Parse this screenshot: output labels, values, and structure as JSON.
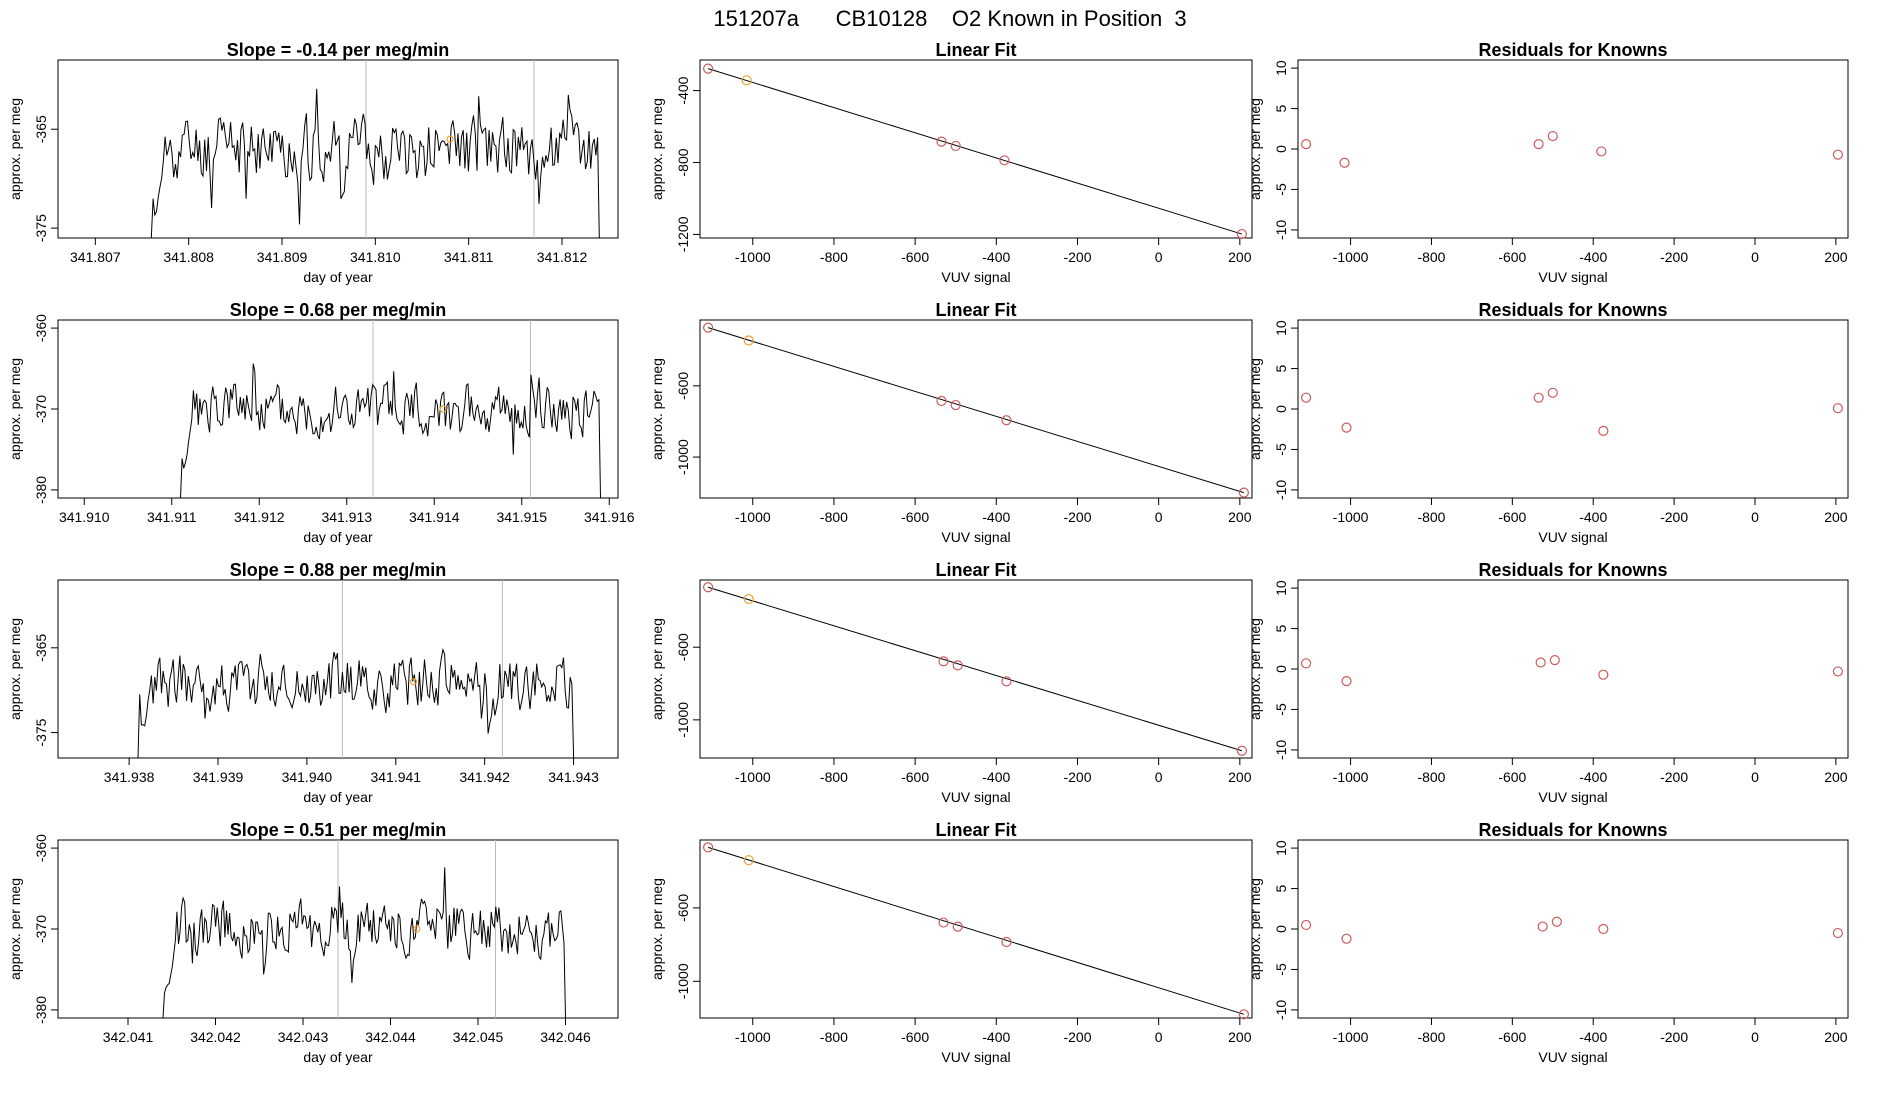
{
  "suptitle": "151207a      CB10128    O2 Known in Position  3",
  "colors": {
    "trace": "#000000",
    "marker": "#d2691e",
    "orange": "#f0a030",
    "vline": "#bbbbbb",
    "fit_point": "#cd5c5c"
  },
  "chart_data": [
    {
      "type": "line",
      "panel": "timeseries",
      "title": "Slope =  -0.14  per meg/min",
      "xlabel": "day of year",
      "ylabel": "approx. per meg",
      "xlim": [
        341.8066,
        341.8126
      ],
      "ylim": [
        -376,
        -358
      ],
      "xticks": [
        "341.807",
        "341.808",
        "341.809",
        "341.810",
        "341.811",
        "341.812"
      ],
      "yticks": [
        -365,
        -375
      ],
      "vlines": [
        341.8099,
        341.8117
      ],
      "trace_start": [
        341.8076,
        -376
      ],
      "trace_end": [
        341.8124,
        -376
      ],
      "trace_mean": -367,
      "trace_amp": 4.5,
      "trace_seed": 11,
      "marker": [
        341.8108,
        -366
      ]
    },
    {
      "type": "scatter",
      "panel": "fit",
      "title": "Linear Fit",
      "xlabel": "VUV signal",
      "ylabel": "approx. per meg",
      "xlim": [
        -1130,
        230
      ],
      "ylim": [
        -1220,
        -230
      ],
      "xticks": [
        -1000,
        -800,
        -600,
        -400,
        -200,
        0,
        200
      ],
      "yticks": [
        -400,
        -800,
        -1200
      ],
      "x": [
        -1110,
        -1015,
        -535,
        -500,
        -380,
        205
      ],
      "y": [
        -278,
        -343,
        -684,
        -708,
        -788,
        -1198
      ],
      "highlight_index": 1
    },
    {
      "type": "scatter",
      "panel": "residuals",
      "title": "Residuals for Knowns",
      "xlabel": "VUV signal",
      "ylabel": "approx. per meg",
      "xlim": [
        -1130,
        230
      ],
      "ylim": [
        -11,
        11
      ],
      "xticks": [
        -1000,
        -800,
        -600,
        -400,
        -200,
        0,
        200
      ],
      "yticks": [
        10,
        5,
        0,
        -5,
        -10
      ],
      "x": [
        -1110,
        -1015,
        -535,
        -500,
        -380,
        205
      ],
      "y": [
        0.6,
        -1.7,
        0.6,
        1.6,
        -0.3,
        -0.7
      ]
    },
    {
      "type": "line",
      "panel": "timeseries",
      "title": "Slope =  0.68  per meg/min",
      "xlabel": "day of year",
      "ylabel": "approx. per meg",
      "xlim": [
        341.9097,
        341.9161
      ],
      "ylim": [
        -381,
        -359
      ],
      "xticks": [
        "341.910",
        "341.911",
        "341.912",
        "341.913",
        "341.914",
        "341.915",
        "341.916"
      ],
      "yticks": [
        -360,
        -370,
        -380
      ],
      "vlines": [
        341.9133,
        341.9151
      ],
      "trace_start": [
        341.9111,
        -381
      ],
      "trace_end": [
        341.9159,
        -381
      ],
      "trace_mean": -370,
      "trace_amp": 4.5,
      "trace_seed": 23,
      "marker": [
        341.9141,
        -370
      ]
    },
    {
      "type": "scatter",
      "panel": "fit",
      "title": "Linear Fit",
      "xlabel": "VUV signal",
      "ylabel": "approx. per meg",
      "xlim": [
        -1130,
        230
      ],
      "ylim": [
        -1230,
        -230
      ],
      "xticks": [
        -1000,
        -800,
        -600,
        -400,
        -200,
        0,
        200
      ],
      "yticks": [
        -600,
        -1000
      ],
      "x": [
        -1110,
        -1010,
        -535,
        -500,
        -375,
        210
      ],
      "y": [
        -273,
        -345,
        -685,
        -708,
        -793,
        -1200
      ],
      "highlight_index": 1
    },
    {
      "type": "scatter",
      "panel": "residuals",
      "title": "Residuals for Knowns",
      "xlabel": "VUV signal",
      "ylabel": "approx. per meg",
      "xlim": [
        -1130,
        230
      ],
      "ylim": [
        -11,
        11
      ],
      "xticks": [
        -1000,
        -800,
        -600,
        -400,
        -200,
        0,
        200
      ],
      "yticks": [
        10,
        5,
        0,
        -5,
        -10
      ],
      "x": [
        -1110,
        -1010,
        -535,
        -500,
        -375,
        205
      ],
      "y": [
        1.4,
        -2.3,
        1.4,
        2.0,
        -2.7,
        0.1
      ]
    },
    {
      "type": "line",
      "panel": "timeseries",
      "title": "Slope =  0.88  per meg/min",
      "xlabel": "day of year",
      "ylabel": "approx. per meg",
      "xlim": [
        341.9372,
        341.9435
      ],
      "ylim": [
        -378,
        -357
      ],
      "xticks": [
        "341.938",
        "341.939",
        "341.940",
        "341.941",
        "341.942",
        "341.943"
      ],
      "yticks": [
        -365,
        -375
      ],
      "vlines": [
        341.9404,
        341.9422
      ],
      "trace_start": [
        341.9381,
        -378
      ],
      "trace_end": [
        341.943,
        -378
      ],
      "trace_mean": -369,
      "trace_amp": 4.5,
      "trace_seed": 37,
      "marker": [
        341.9412,
        -369
      ]
    },
    {
      "type": "scatter",
      "panel": "fit",
      "title": "Linear Fit",
      "xlabel": "VUV signal",
      "ylabel": "approx. per meg",
      "xlim": [
        -1130,
        230
      ],
      "ylim": [
        -1210,
        -230
      ],
      "xticks": [
        -1000,
        -800,
        -600,
        -400,
        -200,
        0,
        200
      ],
      "yticks": [
        -600,
        -1000
      ],
      "x": [
        -1110,
        -1010,
        -530,
        -495,
        -375,
        205
      ],
      "y": [
        -270,
        -335,
        -678,
        -700,
        -788,
        -1170
      ],
      "highlight_index": 1
    },
    {
      "type": "scatter",
      "panel": "residuals",
      "title": "Residuals for Knowns",
      "xlabel": "VUV signal",
      "ylabel": "approx. per meg",
      "xlim": [
        -1130,
        230
      ],
      "ylim": [
        -11,
        11
      ],
      "xticks": [
        -1000,
        -800,
        -600,
        -400,
        -200,
        0,
        200
      ],
      "yticks": [
        10,
        5,
        0,
        -5,
        -10
      ],
      "x": [
        -1110,
        -1010,
        -530,
        -495,
        -375,
        205
      ],
      "y": [
        0.7,
        -1.5,
        0.8,
        1.1,
        -0.7,
        -0.3
      ]
    },
    {
      "type": "line",
      "panel": "timeseries",
      "title": "Slope =  0.51  per meg/min",
      "xlabel": "day of year",
      "ylabel": "approx. per meg",
      "xlim": [
        342.0402,
        342.0466
      ],
      "ylim": [
        -381,
        -359
      ],
      "xticks": [
        "342.041",
        "342.042",
        "342.043",
        "342.044",
        "342.045",
        "342.046"
      ],
      "yticks": [
        -360,
        -370,
        -380
      ],
      "vlines": [
        342.0434,
        342.0452
      ],
      "trace_start": [
        342.0414,
        -381
      ],
      "trace_end": [
        342.046,
        -381
      ],
      "trace_mean": -370,
      "trace_amp": 4.5,
      "trace_seed": 53,
      "marker": [
        342.0443,
        -370
      ]
    },
    {
      "type": "scatter",
      "panel": "fit",
      "title": "Linear Fit",
      "xlabel": "VUV signal",
      "ylabel": "approx. per meg",
      "xlim": [
        -1130,
        230
      ],
      "ylim": [
        -1200,
        -230
      ],
      "xticks": [
        -1000,
        -800,
        -600,
        -400,
        -200,
        0,
        200
      ],
      "yticks": [
        -600,
        -1000
      ],
      "x": [
        -1110,
        -1010,
        -530,
        -495,
        -375,
        210
      ],
      "y": [
        -270,
        -340,
        -680,
        -702,
        -786,
        -1180
      ],
      "highlight_index": 1
    },
    {
      "type": "scatter",
      "panel": "residuals",
      "title": "Residuals for Knowns",
      "xlabel": "VUV signal",
      "ylabel": "approx. per meg",
      "xlim": [
        -1130,
        230
      ],
      "ylim": [
        -11,
        11
      ],
      "xticks": [
        -1000,
        -800,
        -600,
        -400,
        -200,
        0,
        200
      ],
      "yticks": [
        10,
        5,
        0,
        -5,
        -10
      ],
      "x": [
        -1110,
        -1010,
        -525,
        -490,
        -375,
        205
      ],
      "y": [
        0.5,
        -1.2,
        0.3,
        0.9,
        0.0,
        -0.5
      ]
    }
  ]
}
